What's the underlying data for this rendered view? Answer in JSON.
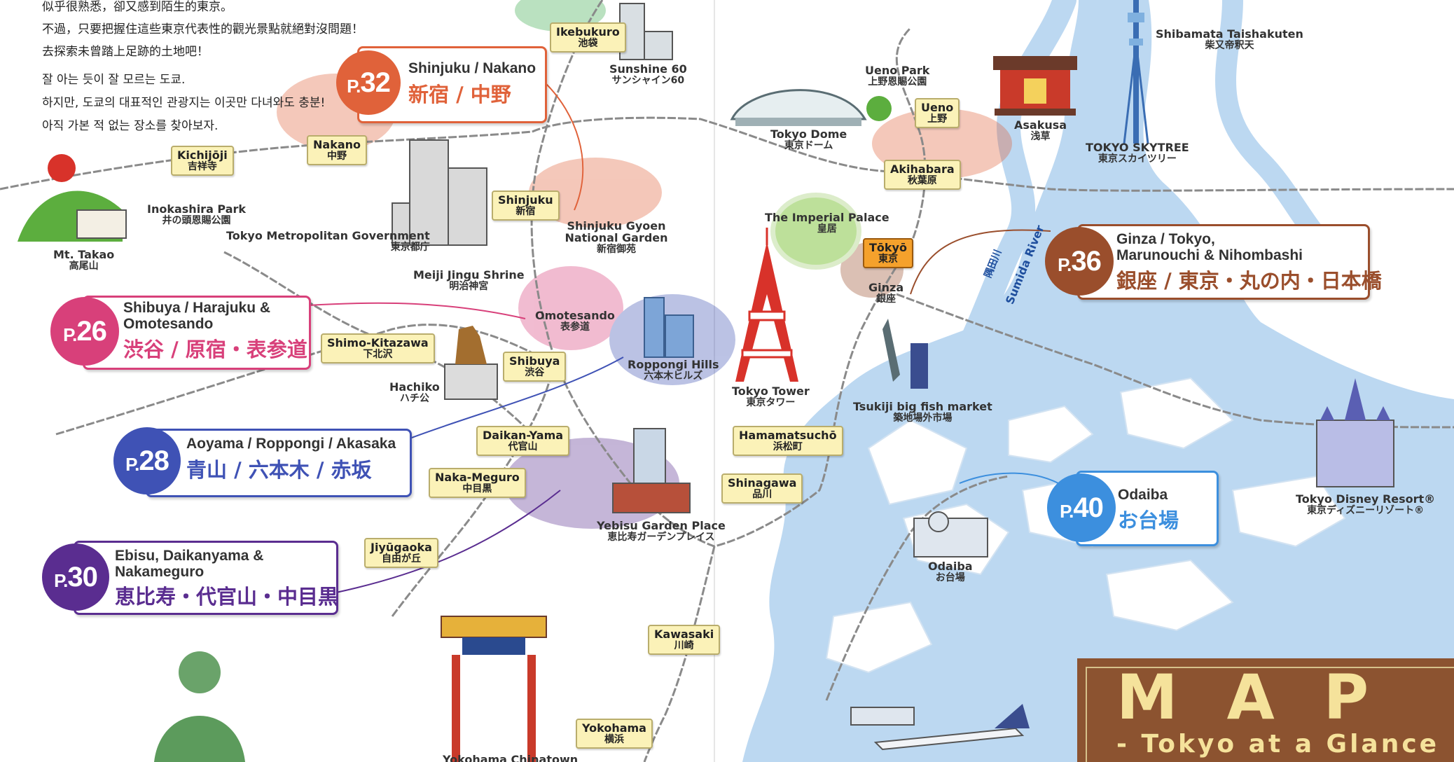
{
  "intro": {
    "zh_lines": [
      "似乎很熟悉，卻又感到陌生的東京。",
      "不過，只要把握住這些東京代表性的觀光景點就絕對沒問題！",
      "去探索未曾踏上足跡的土地吧！"
    ],
    "ko_lines": [
      "잘 아는 듯이 잘 모르는 도쿄.",
      "하지만, 도쿄의 대표적인 관광지는 이곳만 다녀와도 충분!",
      "아직 가본 적 없는 장소를 찾아보자."
    ]
  },
  "colors": {
    "shinjuku": "#e0623a",
    "shibuya": "#d8407a",
    "aoyama": "#3f52b5",
    "ebisu": "#5a2d90",
    "ginza": "#9a4e2c",
    "odaiba": "#3c8fde",
    "water": "#bcd8f1",
    "station_fill": "#fbf2b8",
    "banner": "#8c5330"
  },
  "callouts": [
    {
      "page_prefix": "P.",
      "page_num": "32",
      "title_lines": [
        "Shinjuku / Nakano"
      ],
      "jp": "新宿 / 中野",
      "color": "#e0623a"
    },
    {
      "page_prefix": "P.",
      "page_num": "26",
      "title_lines": [
        "Shibuya / Harajuku &",
        "Omotesando"
      ],
      "jp": "渋谷 / 原宿・表参道",
      "color": "#d8407a"
    },
    {
      "page_prefix": "P.",
      "page_num": "28",
      "title_lines": [
        "Aoyama / Roppongi / Akasaka"
      ],
      "jp": "青山 / 六本木 / 赤坂",
      "color": "#3f52b5"
    },
    {
      "page_prefix": "P.",
      "page_num": "30",
      "title_lines": [
        "Ebisu, Daikanyama &",
        "Nakameguro"
      ],
      "jp": "恵比寿・代官山・中目黒",
      "color": "#5a2d90"
    },
    {
      "page_prefix": "P.",
      "page_num": "36",
      "title_lines": [
        "Ginza / Tokyo,",
        "Marunouchi & Nihombashi"
      ],
      "jp": "銀座 / 東京・丸の内・日本橋",
      "color": "#9a4e2c"
    },
    {
      "page_prefix": "P.",
      "page_num": "40",
      "title_lines": [
        "Odaiba"
      ],
      "jp": "お台場",
      "color": "#3c8fde"
    }
  ],
  "stations": [
    {
      "en": "Ikebukuro",
      "jp": "池袋"
    },
    {
      "en": "Kichijōji",
      "jp": "吉祥寺"
    },
    {
      "en": "Nakano",
      "jp": "中野"
    },
    {
      "en": "Shinjuku",
      "jp": "新宿"
    },
    {
      "en": "Shimo-Kitazawa",
      "jp": "下北沢"
    },
    {
      "en": "Shibuya",
      "jp": "渋谷"
    },
    {
      "en": "Daikan-Yama",
      "jp": "代官山"
    },
    {
      "en": "Naka-Meguro",
      "jp": "中目黒"
    },
    {
      "en": "Jiyūgaoka",
      "jp": "自由が丘"
    },
    {
      "en": "Kawasaki",
      "jp": "川崎"
    },
    {
      "en": "Yokohama",
      "jp": "横浜"
    },
    {
      "en": "Ueno",
      "jp": "上野"
    },
    {
      "en": "Akihabara",
      "jp": "秋葉原"
    },
    {
      "en": "Tōkyō",
      "jp": "東京"
    },
    {
      "en": "Hamamatsuchō",
      "jp": "浜松町"
    },
    {
      "en": "Shinagawa",
      "jp": "品川"
    }
  ],
  "landmarks": [
    {
      "en": "Sunshine 60",
      "jp": "サンシャイン60"
    },
    {
      "en": "Inokashira Park",
      "jp": "井の頭恩賜公園"
    },
    {
      "en": "Mt. Takao",
      "jp": "高尾山"
    },
    {
      "en": "Tokyo Metropolitan Government",
      "jp": "東京都庁"
    },
    {
      "en": "Shinjuku Gyoen National Garden",
      "jp": "新宿御苑"
    },
    {
      "en": "Meiji Jingu Shrine",
      "jp": "明治神宮"
    },
    {
      "en": "Omotesando",
      "jp": "表参道"
    },
    {
      "en": "Hachiko",
      "jp": "ハチ公"
    },
    {
      "en": "Roppongi Hills",
      "jp": "六本木ヒルズ"
    },
    {
      "en": "Yebisu Garden Place",
      "jp": "恵比寿ガーデンプレイス"
    },
    {
      "en": "Tokyo Dome",
      "jp": "東京ドーム"
    },
    {
      "en": "Ueno Park",
      "jp": "上野恩賜公園"
    },
    {
      "en": "Asakusa",
      "jp": "浅草"
    },
    {
      "en": "TOKYO SKYTREE",
      "jp": "東京スカイツリー"
    },
    {
      "en": "Shibamata Taishakuten",
      "jp": "柴又帝釈天"
    },
    {
      "en": "The Imperial Palace",
      "jp": "皇居"
    },
    {
      "en": "Tokyo Tower",
      "jp": "東京タワー"
    },
    {
      "en": "Ginza",
      "jp": "銀座"
    },
    {
      "en": "Tsukiji big fish market",
      "jp": "築地場外市場"
    },
    {
      "en": "Odaiba",
      "jp": "お台場"
    },
    {
      "en": "Tokyo Disney Resort®",
      "jp": "東京ディズニーリゾート®"
    },
    {
      "en": "Yokohama Chinatown",
      "jp": ""
    }
  ],
  "rivers": {
    "sumida": "Sumida River",
    "sumida_jp": "隅田川"
  },
  "banner": {
    "title": "MAP",
    "subtitle": "- Tokyo at a Glance"
  }
}
